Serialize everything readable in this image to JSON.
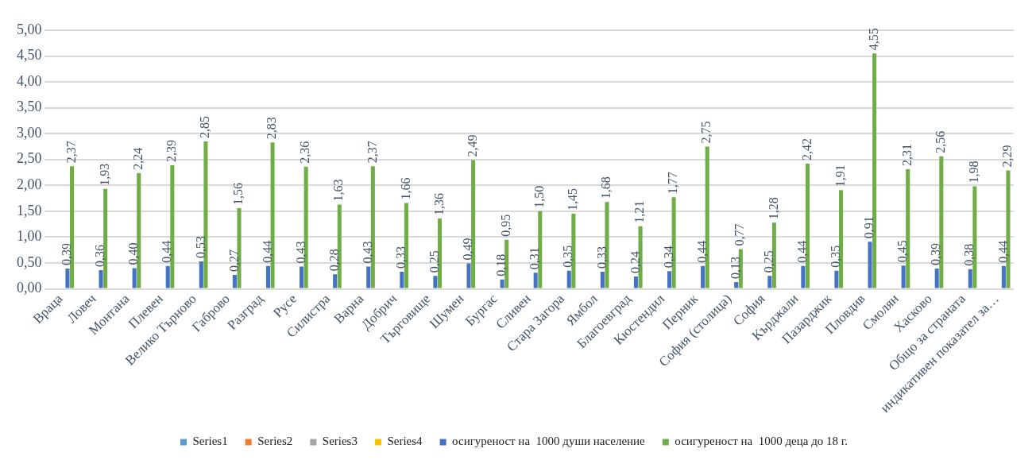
{
  "chart_data": {
    "type": "bar",
    "categories": [
      "Враца",
      "Ловеч",
      "Монтана",
      "Плевен",
      "Велико Търново",
      "Габрово",
      "Разград",
      "Русе",
      "Силистра",
      "Варна",
      "Добрич",
      "Търговище",
      "Шумен",
      "Бургас",
      "Сливен",
      "Стара Загора",
      "Ямбол",
      "Благоевград",
      "Кюстендил",
      "Перник",
      "София (столица)",
      "София",
      "Кърджали",
      "Пазарджик",
      "Пловдив",
      "Смолян",
      "Хасково",
      "Общо за страната",
      "индикативен показател за…"
    ],
    "series": [
      {
        "name": "Series1",
        "color": "#5b9bd5",
        "values": [
          null,
          null,
          null,
          null,
          null,
          null,
          null,
          null,
          null,
          null,
          null,
          null,
          null,
          null,
          null,
          null,
          null,
          null,
          null,
          null,
          null,
          null,
          null,
          null,
          null,
          null,
          null,
          null,
          null
        ]
      },
      {
        "name": "Series2",
        "color": "#ed7d31",
        "values": [
          null,
          null,
          null,
          null,
          null,
          null,
          null,
          null,
          null,
          null,
          null,
          null,
          null,
          null,
          null,
          null,
          null,
          null,
          null,
          null,
          null,
          null,
          null,
          null,
          null,
          null,
          null,
          null,
          null
        ]
      },
      {
        "name": "Series3",
        "color": "#a5a5a5",
        "values": [
          null,
          null,
          null,
          null,
          null,
          null,
          null,
          null,
          null,
          null,
          null,
          null,
          null,
          null,
          null,
          null,
          null,
          null,
          null,
          null,
          null,
          null,
          null,
          null,
          null,
          null,
          null,
          null,
          null
        ]
      },
      {
        "name": "Series4",
        "color": "#ffc000",
        "values": [
          null,
          null,
          null,
          null,
          null,
          null,
          null,
          null,
          null,
          null,
          null,
          null,
          null,
          null,
          null,
          null,
          null,
          null,
          null,
          null,
          null,
          null,
          null,
          null,
          null,
          null,
          null,
          null,
          null
        ]
      },
      {
        "name": "осигуреност на  1000 души население",
        "color": "#4472c4",
        "values": [
          0.39,
          0.36,
          0.4,
          0.44,
          0.53,
          0.27,
          0.44,
          0.43,
          0.28,
          0.43,
          0.33,
          0.25,
          0.49,
          0.18,
          0.31,
          0.35,
          0.33,
          0.24,
          0.34,
          0.44,
          0.13,
          0.25,
          0.44,
          0.35,
          0.91,
          0.45,
          0.39,
          0.38,
          0.44
        ],
        "value_labels": [
          "0,39",
          "0,36",
          "0,40",
          "0,44",
          "0,53",
          "0,27",
          "0,44",
          "0,43",
          "0,28",
          "0,43",
          "0,33",
          "0,25",
          "0,49",
          "0,18",
          "0,31",
          "0,35",
          "0,33",
          "0,24",
          "0,34",
          "0,44",
          "0,13",
          "0,25",
          "0,44",
          "0,35",
          "0,91",
          "0,45",
          "0,39",
          "0,38",
          "0,44"
        ]
      },
      {
        "name": "осигуреност на  1000 деца до 18 г.",
        "color": "#70ad47",
        "values": [
          2.37,
          1.93,
          2.24,
          2.39,
          2.85,
          1.56,
          2.83,
          2.36,
          1.63,
          2.37,
          1.66,
          1.36,
          2.49,
          0.95,
          1.5,
          1.45,
          1.68,
          1.21,
          1.77,
          2.75,
          0.77,
          1.28,
          2.42,
          1.91,
          4.55,
          2.31,
          2.56,
          1.98,
          2.29
        ],
        "value_labels": [
          "2,37",
          "1,93",
          "2,24",
          "2,39",
          "2,85",
          "1,56",
          "2,83",
          "2,36",
          "1,63",
          "2,37",
          "1,66",
          "1,36",
          "2,49",
          "0,95",
          "1,50",
          "1,45",
          "1,68",
          "1,21",
          "1,77",
          "2,75",
          "0,77",
          "1,28",
          "2,42",
          "1,91",
          "4,55",
          "2,31",
          "2,56",
          "1,98",
          "2,29"
        ]
      }
    ],
    "ylim": [
      0,
      5
    ],
    "yticks": [
      {
        "value": 0,
        "label": "0,00"
      },
      {
        "value": 0.5,
        "label": "0,50"
      },
      {
        "value": 1,
        "label": "1,00"
      },
      {
        "value": 1.5,
        "label": "1,50"
      },
      {
        "value": 2,
        "label": "2,00"
      },
      {
        "value": 2.5,
        "label": "2,50"
      },
      {
        "value": 3,
        "label": "3,00"
      },
      {
        "value": 3.5,
        "label": "3,50"
      },
      {
        "value": 4,
        "label": "4,00"
      },
      {
        "value": 4.5,
        "label": "4,50"
      },
      {
        "value": 5,
        "label": "5,00"
      }
    ],
    "grid": "y",
    "legend": "bottom"
  }
}
